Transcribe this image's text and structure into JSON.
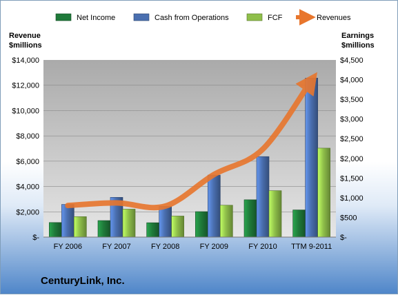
{
  "company": "CenturyLink, Inc.",
  "chart_data": {
    "type": "bar",
    "categories": [
      "FY 2006",
      "FY 2007",
      "FY 2008",
      "FY 2009",
      "FY 2010",
      "TTM 9-2011"
    ],
    "series": [
      {
        "name": "Net Income",
        "axis": "right",
        "color": "#1f7a3a",
        "values": [
          370,
          420,
          365,
          647,
          948,
          690
        ]
      },
      {
        "name": "Cash from Operations",
        "axis": "right",
        "color": "#4a6fb0",
        "values": [
          830,
          1010,
          780,
          1575,
          2045,
          4040
        ]
      },
      {
        "name": "FCF",
        "axis": "right",
        "color": "#8fbf4a",
        "values": [
          520,
          710,
          535,
          810,
          1180,
          2260
        ]
      },
      {
        "name": "Revenues",
        "axis": "left",
        "type": "line",
        "color": "#e8762d",
        "values": [
          2500,
          2700,
          2450,
          4950,
          6950,
          12400
        ]
      }
    ],
    "left_axis": {
      "title_lines": [
        "Revenue",
        "$millions"
      ],
      "ylim": [
        0,
        14000
      ],
      "ticks": [
        0,
        2000,
        4000,
        6000,
        8000,
        10000,
        12000,
        14000
      ],
      "tick_labels": [
        "$-",
        "$2,000",
        "$4,000",
        "$6,000",
        "$8,000",
        "$10,000",
        "$12,000",
        "$14,000"
      ]
    },
    "right_axis": {
      "title_lines": [
        "Earnings",
        "$millions"
      ],
      "ylim": [
        0,
        4500
      ],
      "ticks": [
        0,
        500,
        1000,
        1500,
        2000,
        2500,
        3000,
        3500,
        4000,
        4500
      ],
      "tick_labels": [
        "$-",
        "$500",
        "$1,000",
        "$1,500",
        "$2,000",
        "$2,500",
        "$3,000",
        "$3,500",
        "$4,000",
        "$4,500"
      ]
    },
    "legend_position": "top",
    "grid": true
  }
}
